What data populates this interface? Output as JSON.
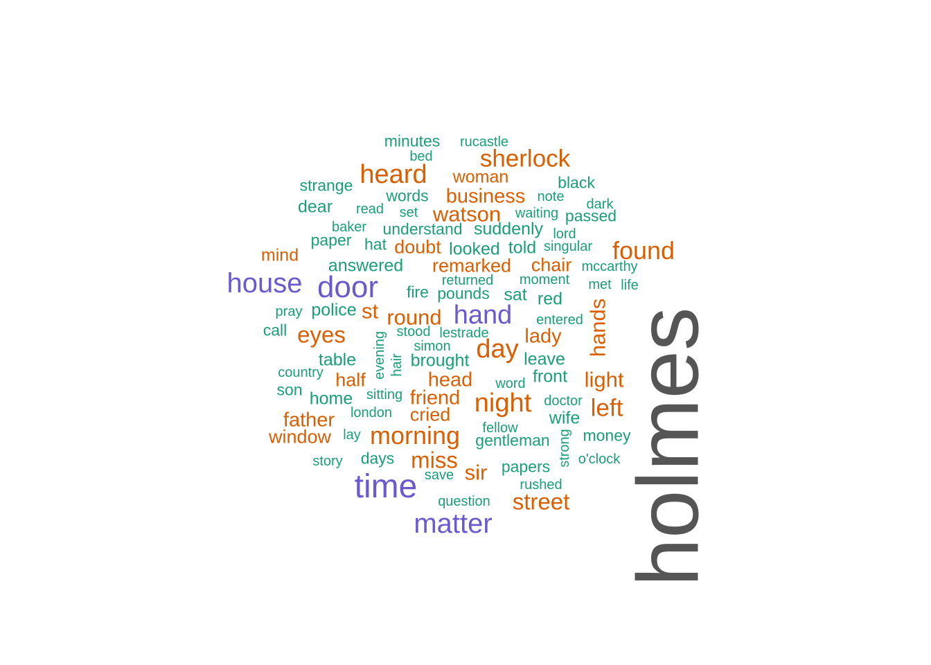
{
  "colors": {
    "background": "#ffffff",
    "tier1": "#555555",
    "tier2": "#6a5acd",
    "tier3": "#d95f02",
    "tier4": "#1b9e77"
  },
  "words": [
    {
      "text": "holmes",
      "tier": 1,
      "vertical": true
    },
    {
      "text": "house",
      "tier": 2
    },
    {
      "text": "door",
      "tier": 2
    },
    {
      "text": "hand",
      "tier": 2
    },
    {
      "text": "time",
      "tier": 2
    },
    {
      "text": "matter",
      "tier": 2
    },
    {
      "text": "sherlock",
      "tier": 3
    },
    {
      "text": "heard",
      "tier": 3
    },
    {
      "text": "woman",
      "tier": 3
    },
    {
      "text": "business",
      "tier": 3
    },
    {
      "text": "watson",
      "tier": 3
    },
    {
      "text": "found",
      "tier": 3
    },
    {
      "text": "mind",
      "tier": 3
    },
    {
      "text": "doubt",
      "tier": 3
    },
    {
      "text": "remarked",
      "tier": 3
    },
    {
      "text": "chair",
      "tier": 3
    },
    {
      "text": "st",
      "tier": 3
    },
    {
      "text": "round",
      "tier": 3
    },
    {
      "text": "eyes",
      "tier": 3
    },
    {
      "text": "day",
      "tier": 3
    },
    {
      "text": "lady",
      "tier": 3
    },
    {
      "text": "hands",
      "tier": 3,
      "vertical": true
    },
    {
      "text": "half",
      "tier": 3
    },
    {
      "text": "head",
      "tier": 3
    },
    {
      "text": "light",
      "tier": 3
    },
    {
      "text": "friend",
      "tier": 3
    },
    {
      "text": "night",
      "tier": 3
    },
    {
      "text": "left",
      "tier": 3
    },
    {
      "text": "father",
      "tier": 3
    },
    {
      "text": "cried",
      "tier": 3
    },
    {
      "text": "window",
      "tier": 3
    },
    {
      "text": "morning",
      "tier": 3
    },
    {
      "text": "miss",
      "tier": 3
    },
    {
      "text": "sir",
      "tier": 3
    },
    {
      "text": "street",
      "tier": 3
    },
    {
      "text": "minutes",
      "tier": 4
    },
    {
      "text": "rucastle",
      "tier": 4
    },
    {
      "text": "bed",
      "tier": 4
    },
    {
      "text": "strange",
      "tier": 4
    },
    {
      "text": "black",
      "tier": 4
    },
    {
      "text": "words",
      "tier": 4
    },
    {
      "text": "note",
      "tier": 4
    },
    {
      "text": "dear",
      "tier": 4
    },
    {
      "text": "read",
      "tier": 4
    },
    {
      "text": "set",
      "tier": 4
    },
    {
      "text": "waiting",
      "tier": 4
    },
    {
      "text": "dark",
      "tier": 4
    },
    {
      "text": "passed",
      "tier": 4
    },
    {
      "text": "baker",
      "tier": 4
    },
    {
      "text": "understand",
      "tier": 4
    },
    {
      "text": "suddenly",
      "tier": 4
    },
    {
      "text": "lord",
      "tier": 4
    },
    {
      "text": "paper",
      "tier": 4
    },
    {
      "text": "hat",
      "tier": 4
    },
    {
      "text": "looked",
      "tier": 4
    },
    {
      "text": "told",
      "tier": 4
    },
    {
      "text": "singular",
      "tier": 4
    },
    {
      "text": "answered",
      "tier": 4
    },
    {
      "text": "mccarthy",
      "tier": 4
    },
    {
      "text": "returned",
      "tier": 4
    },
    {
      "text": "moment",
      "tier": 4
    },
    {
      "text": "met",
      "tier": 4
    },
    {
      "text": "life",
      "tier": 4
    },
    {
      "text": "fire",
      "tier": 4
    },
    {
      "text": "pounds",
      "tier": 4
    },
    {
      "text": "sat",
      "tier": 4
    },
    {
      "text": "red",
      "tier": 4
    },
    {
      "text": "pray",
      "tier": 4
    },
    {
      "text": "police",
      "tier": 4
    },
    {
      "text": "entered",
      "tier": 4
    },
    {
      "text": "call",
      "tier": 4
    },
    {
      "text": "evening",
      "tier": 4,
      "vertical": true
    },
    {
      "text": "stood",
      "tier": 4
    },
    {
      "text": "lestrade",
      "tier": 4
    },
    {
      "text": "simon",
      "tier": 4
    },
    {
      "text": "hair",
      "tier": 4,
      "vertical": true
    },
    {
      "text": "table",
      "tier": 4
    },
    {
      "text": "brought",
      "tier": 4
    },
    {
      "text": "leave",
      "tier": 4
    },
    {
      "text": "country",
      "tier": 4
    },
    {
      "text": "front",
      "tier": 4
    },
    {
      "text": "word",
      "tier": 4
    },
    {
      "text": "son",
      "tier": 4
    },
    {
      "text": "home",
      "tier": 4
    },
    {
      "text": "sitting",
      "tier": 4
    },
    {
      "text": "doctor",
      "tier": 4
    },
    {
      "text": "london",
      "tier": 4
    },
    {
      "text": "wife",
      "tier": 4
    },
    {
      "text": "fellow",
      "tier": 4
    },
    {
      "text": "strong",
      "tier": 4,
      "vertical": true
    },
    {
      "text": "lay",
      "tier": 4
    },
    {
      "text": "gentleman",
      "tier": 4
    },
    {
      "text": "money",
      "tier": 4
    },
    {
      "text": "story",
      "tier": 4
    },
    {
      "text": "days",
      "tier": 4
    },
    {
      "text": "o'clock",
      "tier": 4
    },
    {
      "text": "papers",
      "tier": 4
    },
    {
      "text": "save",
      "tier": 4
    },
    {
      "text": "rushed",
      "tier": 4
    },
    {
      "text": "question",
      "tier": 4
    }
  ]
}
